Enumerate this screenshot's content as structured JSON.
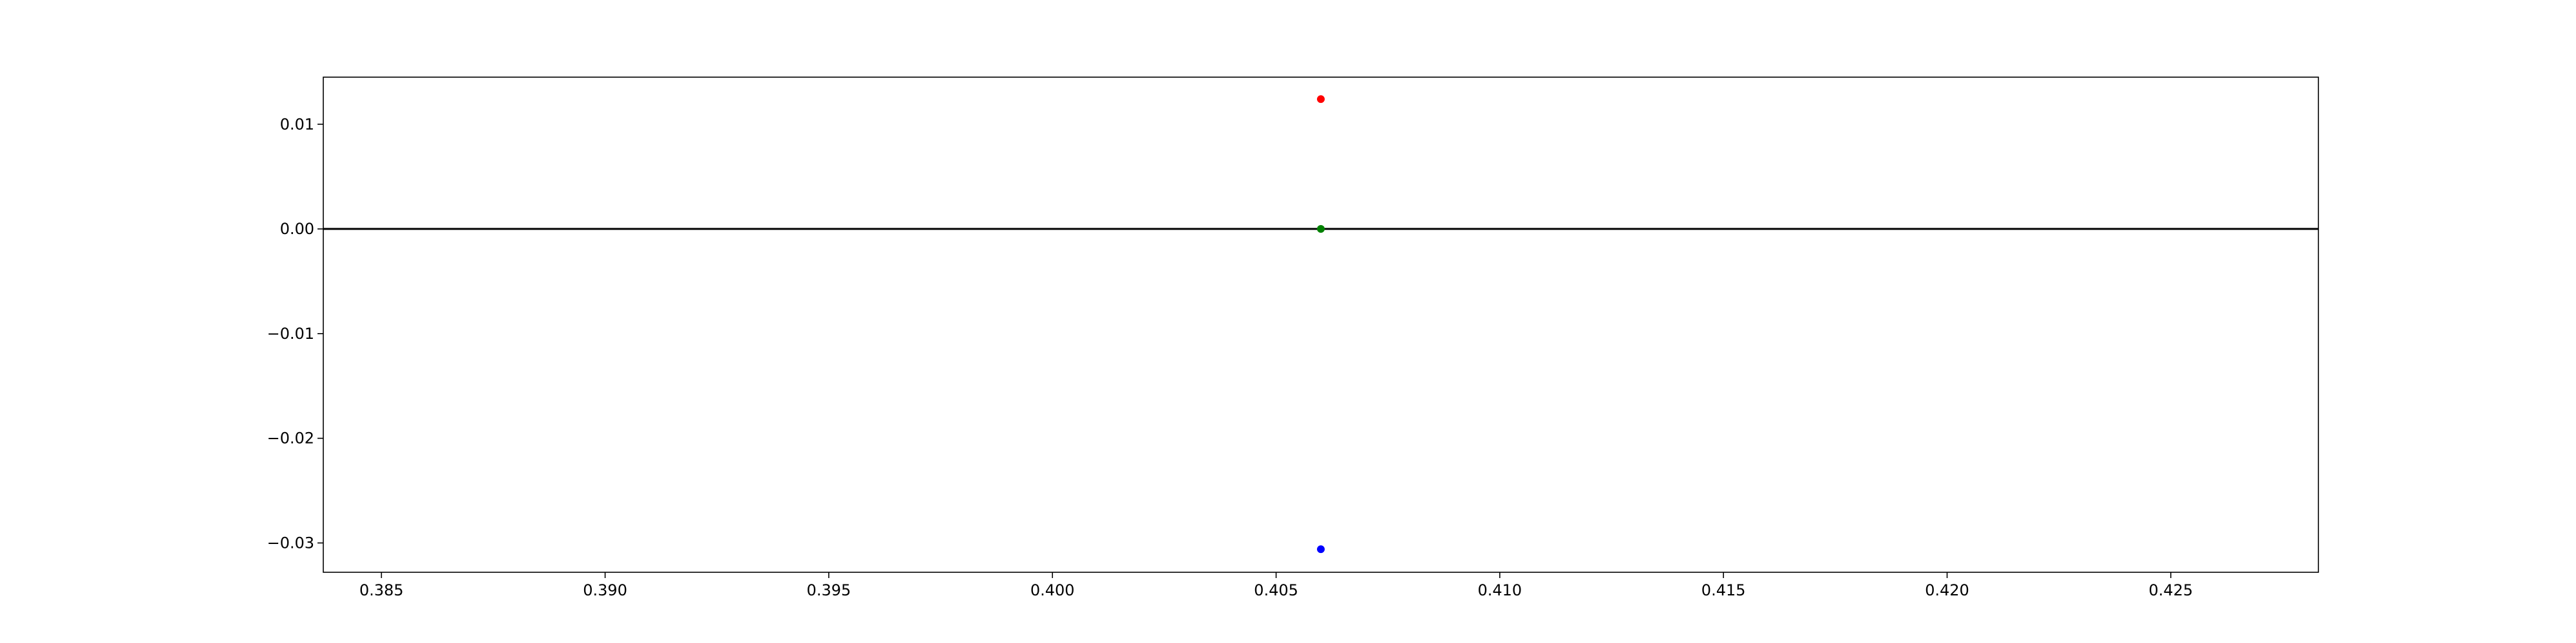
{
  "chart_data": {
    "type": "scatter",
    "title": "",
    "xlabel": "",
    "ylabel": "",
    "xlim": [
      0.3837,
      0.4283
    ],
    "ylim": [
      -0.0328,
      0.0145
    ],
    "grid": false,
    "legend": null,
    "x_ticks": [
      0.385,
      0.39,
      0.395,
      0.4,
      0.405,
      0.41,
      0.415,
      0.42,
      0.425
    ],
    "x_tick_labels": [
      "0.385",
      "0.390",
      "0.395",
      "0.400",
      "0.405",
      "0.410",
      "0.415",
      "0.420",
      "0.425"
    ],
    "y_ticks": [
      0.01,
      0.0,
      -0.01,
      -0.02,
      -0.03
    ],
    "y_tick_labels": [
      "0.01",
      "0.00",
      "−0.01",
      "−0.02",
      "−0.03"
    ],
    "hlines": [
      {
        "y": 0.0,
        "color": "#000000"
      }
    ],
    "series": [
      {
        "color": "#ff0000",
        "points": [
          {
            "x": 0.406,
            "y": 0.0124
          }
        ]
      },
      {
        "color": "#008000",
        "points": [
          {
            "x": 0.406,
            "y": 0.0
          }
        ]
      },
      {
        "color": "#0000ff",
        "points": [
          {
            "x": 0.406,
            "y": -0.0306
          }
        ]
      }
    ]
  }
}
